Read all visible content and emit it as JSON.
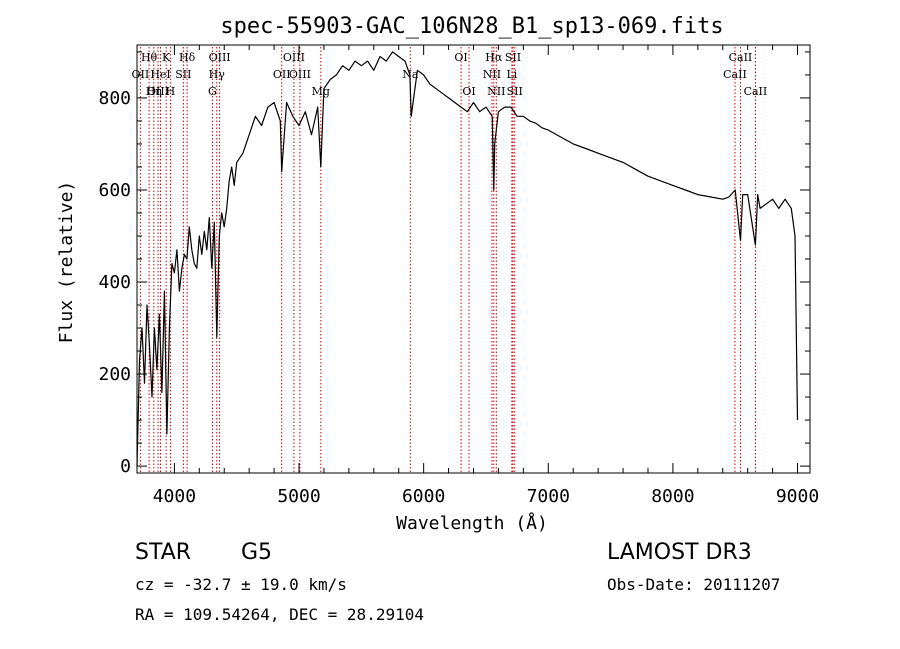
{
  "chart_data": {
    "type": "line",
    "title": "spec-55903-GAC_106N28_B1_sp13-069.fits",
    "xlabel": "Wavelength (Å)",
    "ylabel": "Flux (relative)",
    "xlim": [
      3700,
      9100
    ],
    "ylim": [
      -15,
      915
    ],
    "xticks": [
      4000,
      5000,
      6000,
      7000,
      8000,
      9000
    ],
    "yticks": [
      0,
      200,
      400,
      600,
      800
    ],
    "series": [
      {
        "name": "flux",
        "x": [
          3700,
          3720,
          3740,
          3760,
          3780,
          3800,
          3820,
          3840,
          3860,
          3880,
          3900,
          3920,
          3940,
          3960,
          3980,
          4000,
          4020,
          4040,
          4060,
          4080,
          4100,
          4120,
          4140,
          4160,
          4180,
          4200,
          4220,
          4240,
          4260,
          4280,
          4300,
          4320,
          4340,
          4360,
          4380,
          4400,
          4420,
          4440,
          4460,
          4480,
          4500,
          4550,
          4600,
          4650,
          4700,
          4750,
          4800,
          4850,
          4861,
          4900,
          4950,
          5000,
          5050,
          5100,
          5150,
          5175,
          5200,
          5250,
          5300,
          5350,
          5400,
          5450,
          5500,
          5550,
          5600,
          5650,
          5700,
          5750,
          5800,
          5850,
          5890,
          5900,
          5950,
          6000,
          6050,
          6100,
          6150,
          6200,
          6250,
          6300,
          6350,
          6400,
          6450,
          6500,
          6550,
          6563,
          6570,
          6600,
          6650,
          6700,
          6750,
          6800,
          6850,
          6900,
          6950,
          7000,
          7100,
          7200,
          7300,
          7400,
          7500,
          7600,
          7700,
          7800,
          7900,
          8000,
          8100,
          8200,
          8300,
          8400,
          8450,
          8500,
          8542,
          8560,
          8600,
          8662,
          8680,
          8700,
          8750,
          8800,
          8850,
          8900,
          8950,
          8980,
          9000
        ],
        "values": [
          0,
          230,
          300,
          180,
          350,
          260,
          150,
          300,
          210,
          330,
          160,
          380,
          70,
          300,
          440,
          420,
          470,
          380,
          430,
          460,
          450,
          520,
          470,
          440,
          430,
          500,
          460,
          510,
          470,
          540,
          430,
          530,
          280,
          500,
          550,
          520,
          560,
          620,
          650,
          610,
          660,
          680,
          720,
          760,
          740,
          780,
          790,
          750,
          640,
          790,
          760,
          740,
          770,
          720,
          780,
          650,
          820,
          840,
          850,
          870,
          860,
          880,
          870,
          880,
          860,
          890,
          880,
          900,
          890,
          880,
          850,
          760,
          860,
          850,
          830,
          820,
          810,
          800,
          790,
          780,
          770,
          790,
          770,
          780,
          760,
          600,
          700,
          770,
          780,
          780,
          760,
          760,
          750,
          745,
          735,
          730,
          715,
          700,
          690,
          680,
          670,
          660,
          645,
          630,
          620,
          610,
          600,
          590,
          585,
          580,
          585,
          600,
          490,
          590,
          590,
          480,
          590,
          560,
          570,
          580,
          560,
          580,
          560,
          500,
          100
        ]
      }
    ],
    "spectral_lines": [
      {
        "name": "Hθ",
        "wavelength": 3797,
        "row": 1
      },
      {
        "name": "OII",
        "wavelength": 3727,
        "row": 2
      },
      {
        "name": "OIII",
        "wavelength": 3869,
        "row": 3
      },
      {
        "name": "K",
        "wavelength": 3934,
        "row": 1
      },
      {
        "name": "HeI",
        "wavelength": 3889,
        "row": 2
      },
      {
        "name": "Hη",
        "wavelength": 3835,
        "row": 3
      },
      {
        "name": "SII",
        "wavelength": 4072,
        "row": 2
      },
      {
        "name": "H",
        "wavelength": 3968,
        "row": 3
      },
      {
        "name": "Hδ",
        "wavelength": 4102,
        "row": 1
      },
      {
        "name": "OIII",
        "wavelength": 4363,
        "row": 1
      },
      {
        "name": "Hγ",
        "wavelength": 4340,
        "row": 2
      },
      {
        "name": "G",
        "wavelength": 4305,
        "row": 3
      },
      {
        "name": "OIII",
        "wavelength": 4959,
        "row": 1
      },
      {
        "name": "OII",
        "wavelength": 4861,
        "row": 2
      },
      {
        "name": "OIII",
        "wavelength": 5007,
        "row": 2
      },
      {
        "name": "Mg",
        "wavelength": 5175,
        "row": 3
      },
      {
        "name": "Na",
        "wavelength": 5893,
        "row": 2
      },
      {
        "name": "OI",
        "wavelength": 6300,
        "row": 1
      },
      {
        "name": "OI",
        "wavelength": 6364,
        "row": 3
      },
      {
        "name": "Hα",
        "wavelength": 6563,
        "row": 1
      },
      {
        "name": "SII",
        "wavelength": 6717,
        "row": 1
      },
      {
        "name": "NII",
        "wavelength": 6548,
        "row": 2
      },
      {
        "name": "Li",
        "wavelength": 6708,
        "row": 2
      },
      {
        "name": "NII",
        "wavelength": 6583,
        "row": 3
      },
      {
        "name": "SII",
        "wavelength": 6731,
        "row": 3
      },
      {
        "name": "CaII",
        "wavelength": 8542,
        "row": 1
      },
      {
        "name": "CaII",
        "wavelength": 8498,
        "row": 2
      },
      {
        "name": "CaII",
        "wavelength": 8662,
        "row": 3
      }
    ],
    "line_color": "#cc0000"
  },
  "info": {
    "object_class": "STAR",
    "subclass": "G5",
    "survey": "LAMOST DR3",
    "redshift": "cz = -32.7 ± 19.0 km/s",
    "obs_date": "Obs-Date: 20111207",
    "coords": "RA = 109.54264, DEC =  28.29104"
  }
}
